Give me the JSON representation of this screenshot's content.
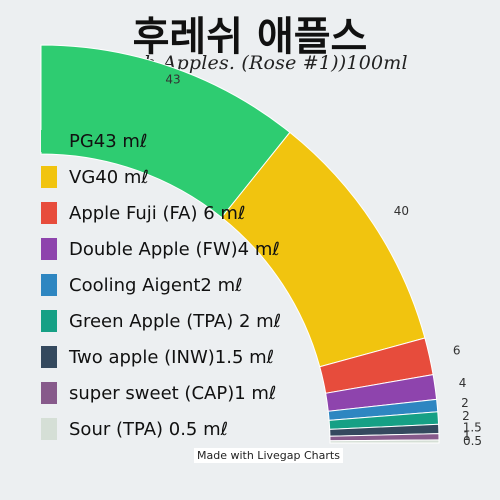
{
  "title": "후레쉬 애플스",
  "subtitle": "(Fresh Apples. (Rose #1))100ml",
  "credit": "Made with Livegap Charts",
  "chart_data": {
    "type": "pie",
    "variant": "quarter-donut",
    "legend_position": "left",
    "categories": [
      "PG43 mℓ",
      "VG40 mℓ",
      "Apple Fuji (FA) 6 mℓ",
      "Double Apple (FW)4 mℓ",
      "Cooling Aigent2 mℓ",
      "Green Apple (TPA) 2 mℓ",
      "Two apple (INW)1.5 mℓ",
      "super sweet (CAP)1 mℓ",
      "Sour (TPA) 0.5 mℓ"
    ],
    "values": [
      43,
      40,
      6,
      4,
      2,
      2,
      1.5,
      1,
      0.5
    ],
    "value_labels": [
      "43",
      "40",
      "6",
      "4",
      "2",
      "2",
      "1.5",
      "1",
      "0.5"
    ],
    "colors": [
      "#2ecc71",
      "#f1c40f",
      "#e74c3c",
      "#8e44ad",
      "#2e86c1",
      "#16a085",
      "#34495e",
      "#875a8b",
      "#d5dfd6"
    ]
  }
}
